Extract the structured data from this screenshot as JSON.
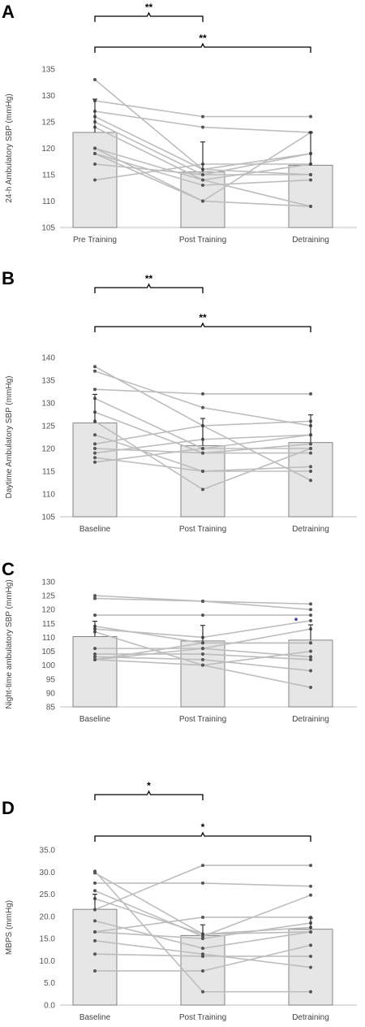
{
  "chart_data": [
    {
      "type": "bar",
      "panel": "A",
      "ylabel": "24-h Ambulatory SBP (mmHg)",
      "categories": [
        "Pre Training",
        "Post Training",
        "Detraining"
      ],
      "values": [
        123,
        115.5,
        116.8
      ],
      "errors": [
        6.3,
        5.7,
        6.2
      ],
      "ylim": [
        105,
        135
      ],
      "yticks": [
        "105",
        "110",
        "115",
        "120",
        "125",
        "130",
        "135"
      ],
      "individuals": [
        [
          133,
          116,
          115
        ],
        [
          129,
          126,
          126
        ],
        [
          127,
          124,
          123
        ],
        [
          126,
          116,
          119
        ],
        [
          125,
          115,
          119
        ],
        [
          124,
          114,
          117
        ],
        [
          120,
          114,
          109
        ],
        [
          119,
          113,
          114
        ],
        [
          117,
          115,
          115
        ],
        [
          114,
          117,
          117
        ],
        [
          120,
          110,
          123
        ],
        [
          119,
          110,
          109
        ]
      ],
      "significance": [
        {
          "from": 0,
          "to": 1,
          "label": "**"
        },
        {
          "from": 0,
          "to": 2,
          "label": "**"
        }
      ]
    },
    {
      "type": "bar",
      "panel": "B",
      "ylabel": "Daytime Ambulatory SBP (mmHg)",
      "categories": [
        "Baseline",
        "Post Training",
        "Detraining"
      ],
      "values": [
        125.6,
        120.6,
        121.3
      ],
      "errors": [
        6.3,
        6.0,
        6.1
      ],
      "ylim": [
        105,
        140
      ],
      "yticks": [
        "105",
        "110",
        "115",
        "120",
        "125",
        "130",
        "135",
        "140"
      ],
      "individuals": [
        [
          138,
          125,
          126
        ],
        [
          137,
          129,
          125
        ],
        [
          133,
          132,
          132
        ],
        [
          131,
          120,
          123
        ],
        [
          128,
          119,
          121
        ],
        [
          126,
          111,
          120
        ],
        [
          123,
          115,
          116
        ],
        [
          121,
          125,
          113
        ],
        [
          120,
          119,
          119
        ],
        [
          119,
          122,
          123
        ],
        [
          118,
          115,
          115
        ],
        [
          117,
          120,
          120
        ]
      ],
      "significance": [
        {
          "from": 0,
          "to": 1,
          "label": "**"
        },
        {
          "from": 0,
          "to": 2,
          "label": "**"
        }
      ]
    },
    {
      "type": "bar",
      "panel": "C",
      "ylabel": "Night-time ambulatory SBP (mmHg)",
      "categories": [
        "Baseline",
        "Post Training",
        "Detraining"
      ],
      "values": [
        110.3,
        108.7,
        109
      ],
      "errors": [
        5.5,
        5.6,
        5.5
      ],
      "ylim": [
        85,
        130
      ],
      "yticks": [
        "85",
        "90",
        "95",
        "100",
        "105",
        "110",
        "115",
        "120",
        "125",
        "130"
      ],
      "individuals": [
        [
          125,
          123,
          120
        ],
        [
          124,
          123,
          122
        ],
        [
          118,
          118,
          118
        ],
        [
          114,
          108,
          108
        ],
        [
          113,
          110,
          116
        ],
        [
          112,
          100,
          92
        ],
        [
          106,
          106,
          103
        ],
        [
          104,
          104,
          102
        ],
        [
          103,
          102,
          98
        ],
        [
          102,
          100,
          105
        ],
        [
          102,
          106,
          113
        ],
        [
          102,
          108,
          108
        ]
      ],
      "outlier": {
        "category": 2,
        "value": 116.5
      },
      "significance": []
    },
    {
      "type": "bar",
      "panel": "D",
      "ylabel": "MBPS (mmHg)",
      "categories": [
        "Baseline",
        "Post Training",
        "Detraining"
      ],
      "values": [
        21.6,
        15.7,
        17.1
      ],
      "errors": [
        3.4,
        2.4,
        2.5
      ],
      "ylim": [
        0,
        35
      ],
      "yticks": [
        "0.0",
        "5.0",
        "10.0",
        "15.0",
        "20.0",
        "25.0",
        "30.0",
        "35.0"
      ],
      "individuals": [
        [
          30.2,
          3.0,
          3.0
        ],
        [
          29.8,
          16.0,
          16.5
        ],
        [
          27.5,
          27.5,
          26.8
        ],
        [
          25.8,
          15.5,
          24.8
        ],
        [
          24.0,
          16.0,
          17.5
        ],
        [
          21.5,
          31.5,
          31.5
        ],
        [
          19.0,
          12.8,
          16.5
        ],
        [
          16.5,
          19.8,
          19.8
        ],
        [
          14.5,
          11.5,
          8.5
        ],
        [
          11.5,
          11.0,
          11.0
        ],
        [
          7.7,
          7.7,
          13.5
        ],
        [
          16.5,
          15.0,
          18.5
        ]
      ],
      "significance": [
        {
          "from": 0,
          "to": 1,
          "label": "*"
        },
        {
          "from": 0,
          "to": 2,
          "label": "*"
        }
      ]
    }
  ]
}
